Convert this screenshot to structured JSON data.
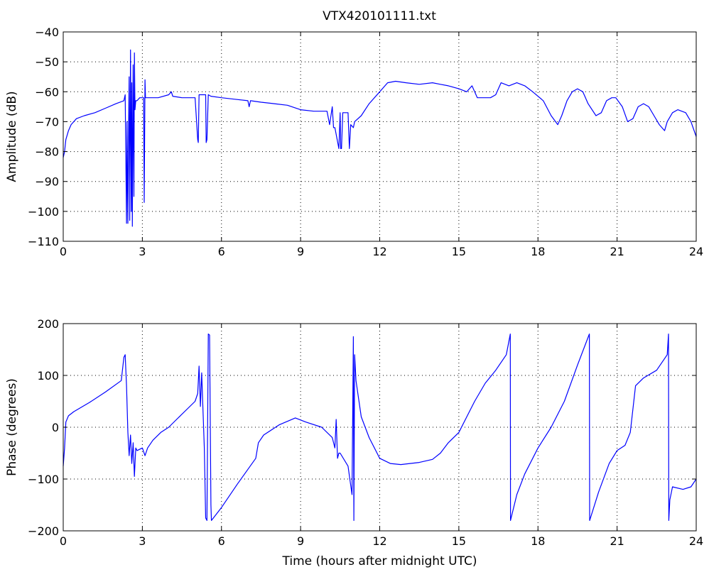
{
  "chart_data": [
    {
      "type": "line",
      "title": "VTX420101111.txt",
      "xlabel": "",
      "ylabel": "Amplitude (dB)",
      "xlim": [
        0,
        24
      ],
      "ylim": [
        -110,
        -40
      ],
      "x_ticks": [
        0,
        3,
        6,
        9,
        12,
        15,
        18,
        21,
        24
      ],
      "x_tick_labels": [
        "0",
        "3",
        "6",
        "9",
        "12",
        "15",
        "18",
        "21",
        "24"
      ],
      "y_ticks": [
        -110,
        -100,
        -90,
        -80,
        -70,
        -60,
        -50,
        -40
      ],
      "y_tick_labels": [
        "−110",
        "−100",
        "−90",
        "−80",
        "−70",
        "−60",
        "−50",
        "−40"
      ],
      "grid": true,
      "color": "#0000ff",
      "series": [
        {
          "x": [
            0,
            0.05,
            0.1,
            0.2,
            0.3,
            0.5,
            0.8,
            1.2,
            1.6,
            2.0,
            2.3,
            2.35,
            2.4,
            2.42,
            2.45,
            2.48,
            2.5,
            2.52,
            2.55,
            2.58,
            2.6,
            2.62,
            2.65,
            2.68,
            2.7,
            2.72,
            2.75,
            2.8,
            2.9,
            3.05,
            3.07,
            3.1,
            3.12,
            3.15,
            3.18,
            3.3,
            3.6,
            4.0,
            4.1,
            4.15,
            4.5,
            5.0,
            5.1,
            5.12,
            5.15,
            5.4,
            5.42,
            5.45,
            5.5,
            5.6,
            6.0,
            6.5,
            7.0,
            7.05,
            7.1,
            7.5,
            8.0,
            8.5,
            9.0,
            9.5,
            10.0,
            10.1,
            10.2,
            10.25,
            10.3,
            10.45,
            10.5,
            10.52,
            10.55,
            10.6,
            10.8,
            10.85,
            10.9,
            11.0,
            11.05,
            11.3,
            11.6,
            12.0,
            12.3,
            12.6,
            13.0,
            13.5,
            14.0,
            14.3,
            14.6,
            15.0,
            15.3,
            15.5,
            15.7,
            16.0,
            16.2,
            16.4,
            16.6,
            16.9,
            17.2,
            17.5,
            17.8,
            18.2,
            18.5,
            18.75,
            18.9,
            19.1,
            19.3,
            19.5,
            19.7,
            19.9,
            20.2,
            20.4,
            20.6,
            20.8,
            20.95,
            21.2,
            21.4,
            21.6,
            21.8,
            22.0,
            22.2,
            22.4,
            22.6,
            22.8,
            22.9,
            23.1,
            23.3,
            23.6,
            23.8,
            24.0
          ],
          "values": [
            -82,
            -80,
            -76,
            -73,
            -71,
            -69,
            -68,
            -67,
            -65.5,
            -64,
            -63,
            -61,
            -104,
            -70,
            -104,
            -70,
            -55,
            -103,
            -46,
            -100,
            -57,
            -105,
            -51,
            -95,
            -47,
            -66,
            -63,
            -63,
            -62,
            -62,
            -97,
            -56,
            -62,
            -62,
            -62,
            -62,
            -62,
            -61,
            -60,
            -61.5,
            -62,
            -62,
            -76,
            -77,
            -61,
            -61,
            -77,
            -76,
            -61,
            -61.5,
            -62,
            -62.5,
            -63,
            -65,
            -63,
            -63.5,
            -64,
            -64.5,
            -66,
            -66.5,
            -66.5,
            -71,
            -65,
            -72,
            -72,
            -79,
            -67,
            -79,
            -79,
            -67,
            -67,
            -79,
            -71,
            -72,
            -70,
            -68,
            -64,
            -60,
            -57,
            -56.5,
            -57,
            -57.5,
            -57,
            -57.5,
            -58,
            -59,
            -60,
            -58,
            -62,
            -62,
            -62,
            -61,
            -57,
            -58,
            -57,
            -58,
            -60,
            -63,
            -68,
            -71,
            -68,
            -63,
            -60,
            -59,
            -60,
            -64,
            -68,
            -67,
            -63,
            -62,
            -62,
            -65,
            -70,
            -69,
            -65,
            -64,
            -65,
            -68,
            -71,
            -73,
            -70,
            -67,
            -66,
            -67,
            -70,
            -75
          ]
        }
      ]
    },
    {
      "type": "line",
      "title": "",
      "xlabel": "Time (hours after midnight UTC)",
      "ylabel": "Phase (degrees)",
      "xlim": [
        0,
        24
      ],
      "ylim": [
        -200,
        200
      ],
      "x_ticks": [
        0,
        3,
        6,
        9,
        12,
        15,
        18,
        21,
        24
      ],
      "x_tick_labels": [
        "0",
        "3",
        "6",
        "9",
        "12",
        "15",
        "18",
        "21",
        "24"
      ],
      "y_ticks": [
        -200,
        -100,
        0,
        100,
        200
      ],
      "y_tick_labels": [
        "−200",
        "−100",
        "0",
        "100",
        "200"
      ],
      "grid": true,
      "color": "#0000ff",
      "series": [
        {
          "x": [
            0,
            0.05,
            0.1,
            0.2,
            0.4,
            1.0,
            1.6,
            2.2,
            2.3,
            2.35,
            2.4,
            2.45,
            2.5,
            2.55,
            2.6,
            2.65,
            2.7,
            2.75,
            2.8,
            3.0,
            3.1,
            3.2,
            3.4,
            3.7,
            4.0,
            4.3,
            5.0,
            5.1,
            5.15,
            5.2,
            5.25,
            5.3,
            5.35,
            5.4,
            5.45,
            5.5,
            5.55,
            5.6,
            5.62,
            5.65,
            6.0,
            6.6,
            7.3,
            7.4,
            7.6,
            8.2,
            8.8,
            9.2,
            9.8,
            10.2,
            10.3,
            10.35,
            10.4,
            10.45,
            10.5,
            10.8,
            10.95,
            11.0,
            11.02,
            11.05,
            11.1,
            11.2,
            11.3,
            11.6,
            12.0,
            12.4,
            12.8,
            13.5,
            14.0,
            14.3,
            14.6,
            15.0,
            15.3,
            15.6,
            16.0,
            16.4,
            16.8,
            16.95,
            16.96,
            17.2,
            17.5,
            18.0,
            18.5,
            19.0,
            19.5,
            19.95,
            19.96,
            20.3,
            20.7,
            21.0,
            21.3,
            21.5,
            21.7,
            22.0,
            22.5,
            22.9,
            22.95,
            22.96,
            23.0,
            23.1,
            23.5,
            23.8,
            24.0
          ],
          "values": [
            -75,
            -40,
            10,
            22,
            30,
            48,
            68,
            90,
            135,
            140,
            80,
            -10,
            -55,
            -15,
            -70,
            -30,
            -95,
            -40,
            -45,
            -40,
            -55,
            -40,
            -25,
            -10,
            0,
            15,
            50,
            65,
            118,
            40,
            105,
            30,
            -40,
            -175,
            -180,
            180,
            178,
            -150,
            -180,
            -178,
            -155,
            -110,
            -60,
            -30,
            -15,
            5,
            18,
            10,
            0,
            -20,
            -40,
            15,
            -60,
            -50,
            -50,
            -75,
            -130,
            175,
            -180,
            140,
            90,
            55,
            20,
            -20,
            -60,
            -70,
            -72,
            -68,
            -62,
            -50,
            -30,
            -10,
            20,
            50,
            85,
            110,
            140,
            180,
            -180,
            -130,
            -90,
            -40,
            0,
            50,
            120,
            180,
            -180,
            -125,
            -70,
            -45,
            -35,
            -10,
            80,
            95,
            110,
            140,
            180,
            -180,
            -140,
            -115,
            -120,
            -115,
            -100
          ]
        }
      ]
    }
  ]
}
